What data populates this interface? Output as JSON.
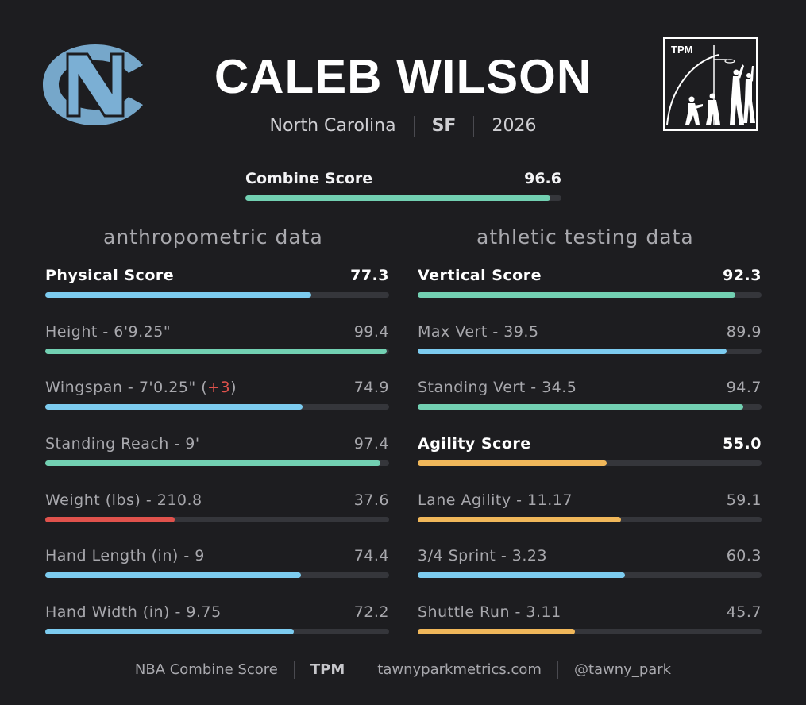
{
  "player": {
    "name": "CALEB WILSON",
    "school": "North Carolina",
    "position": "SF",
    "year": "2026"
  },
  "logos": {
    "team_logo": "NC",
    "brand_logo": "TPM"
  },
  "combine": {
    "label": "Combine Score",
    "value": "96.6",
    "fill": 0.966
  },
  "sections": {
    "anthro_title": "anthropometric data",
    "athletic_title": "athletic testing data"
  },
  "anthro": [
    {
      "label": "Physical Score",
      "value": "77.3",
      "fill": 0.773,
      "color": "#7ccbef",
      "header": true
    },
    {
      "label": "Height - 6'9.25\"",
      "value": "99.4",
      "fill": 0.994,
      "color": "#72d0b2"
    },
    {
      "label": "Wingspan - 7'0.25\" (",
      "plus": "+3",
      "suffix": ")",
      "value": "74.9",
      "fill": 0.749,
      "color": "#7ccbef"
    },
    {
      "label": "Standing Reach - 9'",
      "value": "97.4",
      "fill": 0.974,
      "color": "#72d0b2"
    },
    {
      "label": "Weight (lbs) - 210.8",
      "value": "37.6",
      "fill": 0.376,
      "color": "#e0524c"
    },
    {
      "label": "Hand Length (in) - 9",
      "value": "74.4",
      "fill": 0.744,
      "color": "#7ccbef"
    },
    {
      "label": "Hand Width (in) - 9.75",
      "value": "72.2",
      "fill": 0.722,
      "color": "#7ccbef"
    }
  ],
  "athletic": [
    {
      "label": "Vertical Score",
      "value": "92.3",
      "fill": 0.923,
      "color": "#72d0b2",
      "header": true
    },
    {
      "label": "Max Vert - 39.5",
      "value": "89.9",
      "fill": 0.899,
      "color": "#7ccbef"
    },
    {
      "label": "Standing Vert - 34.5",
      "value": "94.7",
      "fill": 0.947,
      "color": "#72d0b2"
    },
    {
      "label": "Agility Score",
      "value": "55.0",
      "fill": 0.55,
      "color": "#f0b75a",
      "header": true
    },
    {
      "label": "Lane Agility - 11.17",
      "value": "59.1",
      "fill": 0.591,
      "color": "#f0b75a"
    },
    {
      "label": "3/4 Sprint - 3.23",
      "value": "60.3",
      "fill": 0.603,
      "color": "#7ccbef"
    },
    {
      "label": "Shuttle Run - 3.11",
      "value": "45.7",
      "fill": 0.457,
      "color": "#f0b75a"
    }
  ],
  "footer": {
    "item1": "NBA Combine Score",
    "item2": "TPM",
    "item3": "tawnyparkmetrics.com",
    "item4": "@tawny_park"
  },
  "colors": {
    "background": "#1d1d20",
    "track": "#35363b",
    "combine_fill": "#72d0b2"
  }
}
